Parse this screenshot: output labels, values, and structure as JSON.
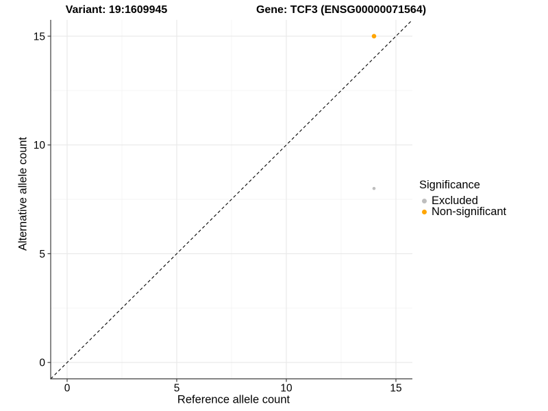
{
  "chart_data": {
    "type": "scatter",
    "title_left": "Variant: 19:1609945",
    "title_right": "Gene: TCF3 (ENSG00000071564)",
    "xlabel": "Reference allele count",
    "ylabel": "Alternative allele count",
    "xlim": [
      -0.75,
      15.75
    ],
    "ylim": [
      -0.75,
      15.75
    ],
    "x_ticks": [
      0,
      5,
      10,
      15
    ],
    "y_ticks": [
      0,
      5,
      10,
      15
    ],
    "x_minor_ticks": [
      2.5,
      7.5,
      12.5
    ],
    "y_minor_ticks": [
      2.5,
      7.5,
      12.5
    ],
    "grid": true,
    "series": [
      {
        "name": "Excluded",
        "color": "#BEBEBE",
        "marker_radius": 2.3,
        "points": [
          [
            14,
            8
          ]
        ]
      },
      {
        "name": "Non-significant",
        "color": "#FFA500",
        "marker_radius": 3.3,
        "points": [
          [
            14,
            15
          ]
        ]
      }
    ],
    "reference_line": {
      "kind": "identity",
      "label": "y = x",
      "style": "dashed",
      "color": "#000000"
    },
    "legend": {
      "title": "Significance",
      "position": "right",
      "items": [
        {
          "label": "Excluded",
          "color": "#BEBEBE"
        },
        {
          "label": "Non-significant",
          "color": "#FFA500"
        }
      ]
    }
  },
  "style": {
    "background": "#FFFFFF",
    "grid_major": "#E8E8E8",
    "grid_minor": "#F3F3F3",
    "axis_line": "#3A3A3A",
    "tick_color": "#3A3A3A",
    "text_color": "#000000"
  }
}
